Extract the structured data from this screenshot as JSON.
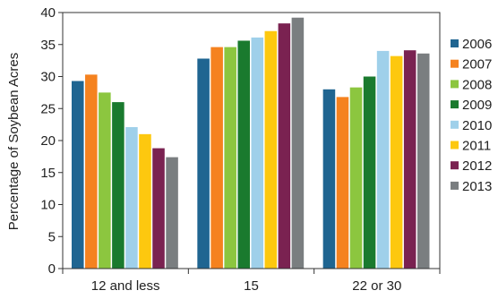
{
  "chart_data": {
    "type": "bar",
    "title": "",
    "xlabel": "",
    "ylabel": "Percentage of Soybean Acres",
    "ylim": [
      0,
      40
    ],
    "yticks": [
      0,
      5,
      10,
      15,
      20,
      25,
      30,
      35,
      40
    ],
    "grid": false,
    "legend_position": "right",
    "categories": [
      "12 and less",
      "15",
      "22 or 30"
    ],
    "series": [
      {
        "name": "2006",
        "color": "#1f6591",
        "values": [
          29.3,
          32.8,
          28.0
        ]
      },
      {
        "name": "2007",
        "color": "#f5821f",
        "values": [
          30.3,
          34.6,
          26.8
        ]
      },
      {
        "name": "2008",
        "color": "#8cc63f",
        "values": [
          27.5,
          34.6,
          28.3
        ]
      },
      {
        "name": "2009",
        "color": "#1a7a2e",
        "values": [
          26.0,
          35.6,
          30.0
        ]
      },
      {
        "name": "2010",
        "color": "#9fd0ea",
        "values": [
          22.1,
          36.1,
          34.0
        ]
      },
      {
        "name": "2011",
        "color": "#fdc80f",
        "values": [
          21.0,
          37.1,
          33.2
        ]
      },
      {
        "name": "2012",
        "color": "#7a2251",
        "values": [
          18.8,
          38.3,
          34.1
        ]
      },
      {
        "name": "2013",
        "color": "#7a7e80",
        "values": [
          17.4,
          39.2,
          33.6
        ]
      }
    ]
  }
}
